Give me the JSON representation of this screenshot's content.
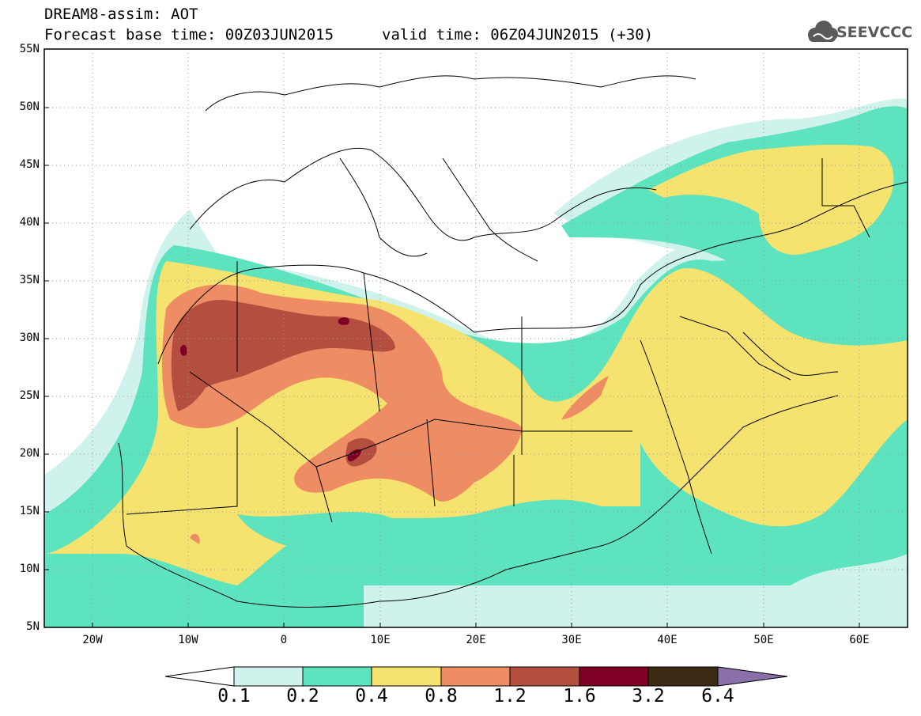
{
  "header": {
    "line1": "DREAM8-assim: AOT",
    "line2": "Forecast base time: 00Z03JUN2015",
    "valid": "valid time: 06Z04JUN2015 (+30)"
  },
  "logo": {
    "text": "SEEVCCC",
    "icon": "cloud-icon"
  },
  "axes": {
    "lat_labels": [
      "55N",
      "50N",
      "45N",
      "40N",
      "35N",
      "30N",
      "25N",
      "20N",
      "15N",
      "10N",
      "5N"
    ],
    "lon_labels": [
      "20W",
      "10W",
      "0",
      "10E",
      "20E",
      "30E",
      "40E",
      "50E",
      "60E"
    ],
    "lon_range": [
      -25,
      65
    ],
    "lat_range": [
      5,
      55
    ],
    "grid": "dotted"
  },
  "colorbar": {
    "labels": [
      "0.1",
      "0.2",
      "0.4",
      "0.8",
      "1.2",
      "1.6",
      "3.2",
      "6.4"
    ],
    "colors": [
      "#ffffff",
      "#cff3ec",
      "#5de3bd",
      "#f6e26e",
      "#ee8c64",
      "#b44f40",
      "#7f0024",
      "#3d2a14",
      "#8a6fa8"
    ]
  },
  "chart_data": {
    "type": "heatmap",
    "title": "DREAM8-assim: AOT",
    "xlabel": "",
    "ylabel": "",
    "xlim": [
      -25,
      65
    ],
    "ylim": [
      5,
      55
    ],
    "levels": [
      0.1,
      0.2,
      0.4,
      0.8,
      1.2,
      1.6,
      3.2,
      6.4
    ],
    "level_colors": [
      "#cff3ec",
      "#5de3bd",
      "#f6e26e",
      "#ee8c64",
      "#b44f40",
      "#7f0024",
      "#3d2a14"
    ]
  }
}
